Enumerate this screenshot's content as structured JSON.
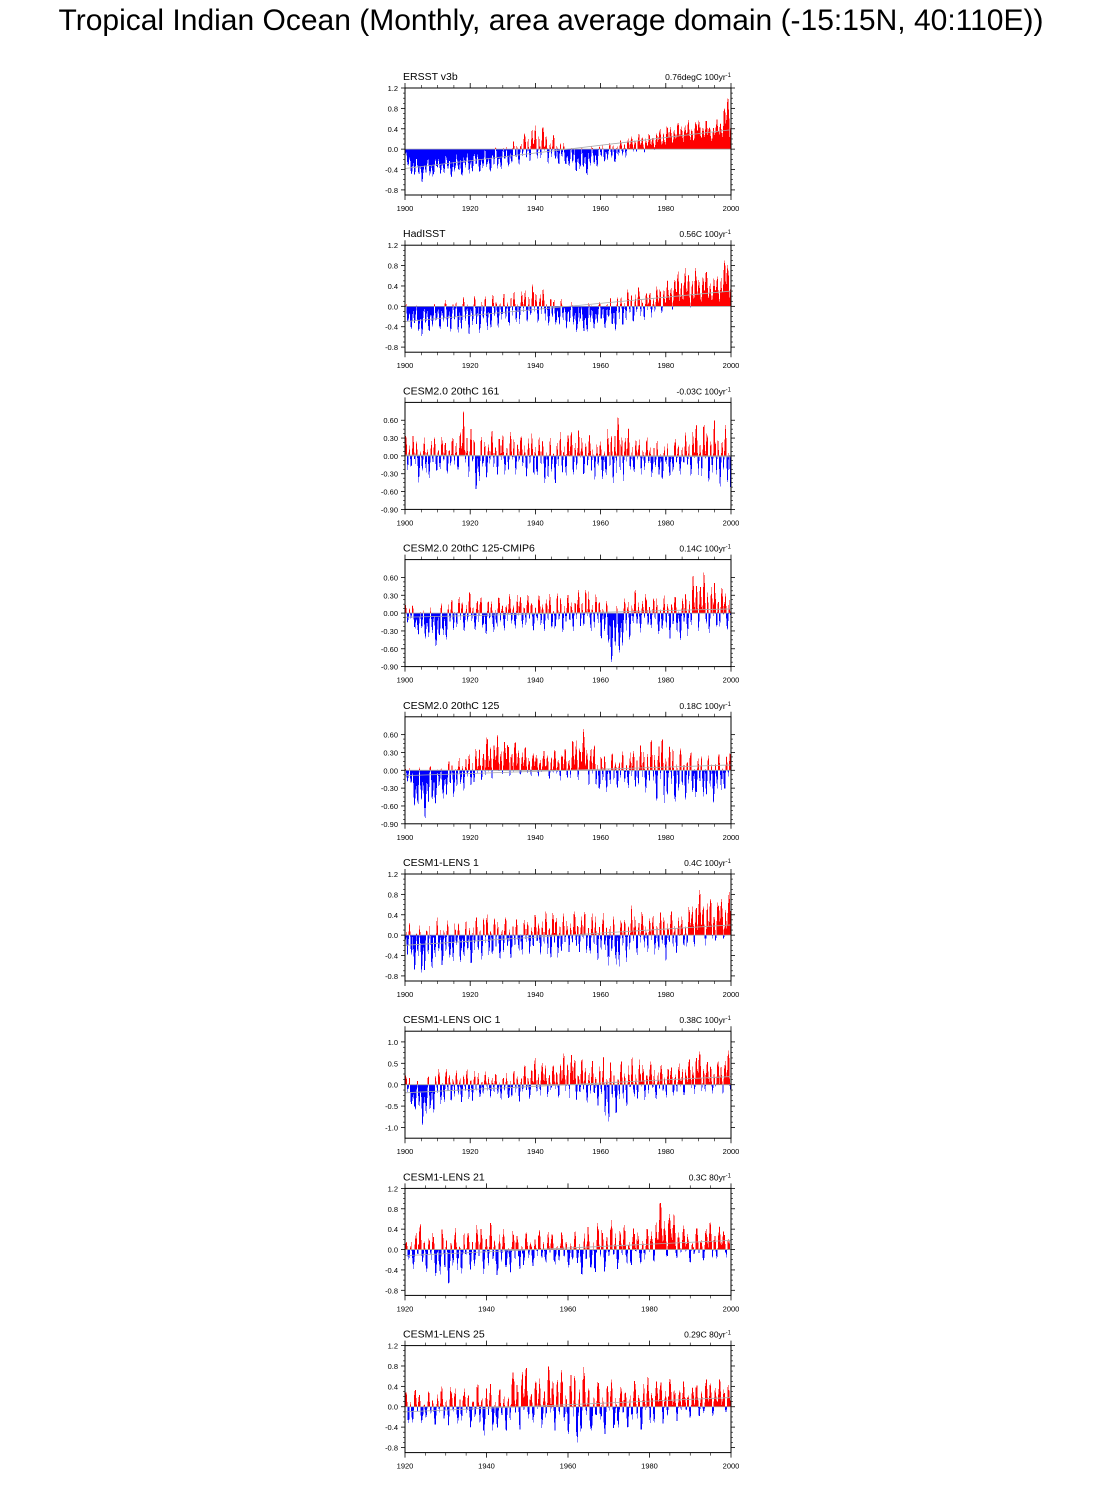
{
  "title": "Tropical Indian Ocean (Monthly, area average domain (-15:15N, 40:110E))",
  "colors": {
    "positive": "#ff0000",
    "negative": "#0000ff",
    "zero_line": "#a0a0a0",
    "trend_line": "#aaaaaa"
  },
  "chart_data": [
    {
      "type": "bar",
      "name": "ERSST v3b",
      "trend": "0.76degC 100yr",
      "xlim": [
        1900,
        2000
      ],
      "xticks": [
        "1900",
        "1920",
        "1940",
        "1960",
        "1980",
        "2000"
      ],
      "ylim": [
        -0.9,
        1.2
      ],
      "yticks": [
        "1.2",
        "0.8",
        "0.4",
        "0.0",
        "-0.4",
        "-0.8"
      ],
      "trend_line": [
        -0.38,
        0.38
      ],
      "anomaly_envelope": {
        "years": [
          1900,
          1905,
          1910,
          1915,
          1920,
          1925,
          1930,
          1935,
          1940,
          1945,
          1950,
          1955,
          1960,
          1965,
          1970,
          1975,
          1980,
          1985,
          1990,
          1995,
          1999
        ],
        "max": [
          0.0,
          -0.2,
          -0.15,
          -0.1,
          -0.05,
          0.0,
          0.05,
          0.2,
          0.55,
          0.3,
          0.05,
          0.05,
          0.1,
          0.15,
          0.3,
          0.3,
          0.45,
          0.55,
          0.6,
          0.5,
          1.05
        ],
        "min": [
          -0.45,
          -0.65,
          -0.5,
          -0.55,
          -0.5,
          -0.45,
          -0.4,
          -0.3,
          -0.2,
          -0.3,
          -0.35,
          -0.55,
          -0.3,
          -0.25,
          -0.1,
          -0.05,
          0.05,
          0.1,
          0.15,
          0.15,
          0.2
        ]
      }
    },
    {
      "type": "bar",
      "name": "HadISST",
      "trend": "0.56C 100yr",
      "xlim": [
        1900,
        2000
      ],
      "xticks": [
        "1900",
        "1920",
        "1940",
        "1960",
        "1980",
        "2000"
      ],
      "ylim": [
        -0.9,
        1.2
      ],
      "yticks": [
        "1.2",
        "0.8",
        "0.4",
        "0.0",
        "-0.4",
        "-0.8"
      ],
      "trend_line": [
        -0.3,
        0.3
      ],
      "anomaly_envelope": {
        "years": [
          1900,
          1905,
          1910,
          1915,
          1920,
          1925,
          1930,
          1935,
          1940,
          1945,
          1950,
          1955,
          1960,
          1965,
          1970,
          1975,
          1980,
          1985,
          1990,
          1995,
          1999
        ],
        "max": [
          0.05,
          0.0,
          0.1,
          0.15,
          0.2,
          0.2,
          0.25,
          0.3,
          0.45,
          0.2,
          0.1,
          0.05,
          0.1,
          0.2,
          0.4,
          0.3,
          0.5,
          0.75,
          0.75,
          0.6,
          1.05
        ],
        "min": [
          -0.35,
          -0.6,
          -0.45,
          -0.5,
          -0.55,
          -0.5,
          -0.4,
          -0.35,
          -0.3,
          -0.4,
          -0.45,
          -0.55,
          -0.4,
          -0.5,
          -0.3,
          -0.25,
          -0.1,
          -0.05,
          0.0,
          0.05,
          0.1
        ]
      }
    },
    {
      "type": "bar",
      "name": "CESM2.0 20thC 161",
      "trend": "-0.03C 100yr",
      "xlim": [
        1900,
        2000
      ],
      "xticks": [
        "1900",
        "1920",
        "1940",
        "1960",
        "1980",
        "2000"
      ],
      "ylim": [
        -0.9,
        0.9
      ],
      "yticks": [
        "0.60",
        "0.30",
        "0.00",
        "-0.30",
        "-0.60",
        "-0.90"
      ],
      "trend_line": [
        0.015,
        -0.015
      ],
      "anomaly_envelope": {
        "years": [
          1900,
          1905,
          1910,
          1915,
          1918,
          1922,
          1925,
          1930,
          1935,
          1940,
          1945,
          1950,
          1955,
          1960,
          1965,
          1970,
          1975,
          1980,
          1985,
          1990,
          1995,
          1999
        ],
        "max": [
          0.45,
          0.3,
          0.35,
          0.3,
          0.75,
          0.25,
          0.4,
          0.45,
          0.35,
          0.4,
          0.3,
          0.5,
          0.4,
          0.25,
          0.7,
          0.35,
          0.3,
          0.2,
          0.35,
          0.55,
          0.6,
          0.5
        ],
        "min": [
          -0.2,
          -0.5,
          -0.3,
          -0.3,
          -0.2,
          -0.6,
          -0.35,
          -0.35,
          -0.3,
          -0.4,
          -0.5,
          -0.35,
          -0.3,
          -0.45,
          -0.5,
          -0.3,
          -0.35,
          -0.4,
          -0.3,
          -0.35,
          -0.55,
          -0.6
        ]
      }
    },
    {
      "type": "bar",
      "name": "CESM2.0 20thC 125-CMIP6",
      "trend": "0.14C 100yr",
      "xlim": [
        1900,
        2000
      ],
      "xticks": [
        "1900",
        "1920",
        "1940",
        "1960",
        "1980",
        "2000"
      ],
      "ylim": [
        -0.9,
        0.9
      ],
      "yticks": [
        "0.60",
        "0.30",
        "0.00",
        "-0.30",
        "-0.60",
        "-0.90"
      ],
      "trend_line": [
        -0.07,
        0.07
      ],
      "anomaly_envelope": {
        "years": [
          1900,
          1905,
          1910,
          1915,
          1920,
          1925,
          1930,
          1935,
          1940,
          1945,
          1950,
          1955,
          1960,
          1964,
          1970,
          1975,
          1980,
          1985,
          1990,
          1995,
          1999
        ],
        "max": [
          0.2,
          0.05,
          0.15,
          0.25,
          0.35,
          0.25,
          0.3,
          0.35,
          0.3,
          0.35,
          0.3,
          0.45,
          0.3,
          0.1,
          0.4,
          0.3,
          0.3,
          0.35,
          0.75,
          0.55,
          0.4
        ],
        "min": [
          -0.1,
          -0.45,
          -0.6,
          -0.3,
          -0.3,
          -0.35,
          -0.3,
          -0.25,
          -0.3,
          -0.35,
          -0.3,
          -0.3,
          -0.4,
          -0.9,
          -0.35,
          -0.3,
          -0.4,
          -0.5,
          -0.3,
          -0.35,
          -0.3
        ]
      }
    },
    {
      "type": "bar",
      "name": "CESM2.0 20thC 125",
      "trend": "0.18C 100yr",
      "xlim": [
        1900,
        2000
      ],
      "xticks": [
        "1900",
        "1920",
        "1940",
        "1960",
        "1980",
        "2000"
      ],
      "ylim": [
        -0.9,
        0.9
      ],
      "yticks": [
        "0.60",
        "0.30",
        "0.00",
        "-0.30",
        "-0.60",
        "-0.90"
      ],
      "trend_line": [
        -0.09,
        0.09
      ],
      "anomaly_envelope": {
        "years": [
          1900,
          1903,
          1906,
          1910,
          1915,
          1920,
          1925,
          1928,
          1935,
          1940,
          1945,
          1950,
          1954,
          1960,
          1965,
          1970,
          1975,
          1979,
          1985,
          1990,
          1995,
          1999
        ],
        "max": [
          0.1,
          0.05,
          0.05,
          0.1,
          0.2,
          0.3,
          0.55,
          0.6,
          0.45,
          0.3,
          0.35,
          0.4,
          0.75,
          0.3,
          0.3,
          0.35,
          0.5,
          0.6,
          0.35,
          0.3,
          0.25,
          0.3
        ],
        "min": [
          -0.1,
          -0.6,
          -0.85,
          -0.5,
          -0.45,
          -0.3,
          -0.2,
          -0.1,
          -0.1,
          -0.1,
          -0.15,
          -0.2,
          -0.15,
          -0.4,
          -0.3,
          -0.3,
          -0.4,
          -0.6,
          -0.5,
          -0.45,
          -0.55,
          -0.3
        ]
      }
    },
    {
      "type": "bar",
      "name": "CESM1-LENS 1",
      "trend": "0.4C 100yr",
      "xlim": [
        1900,
        2000
      ],
      "xticks": [
        "1900",
        "1920",
        "1940",
        "1960",
        "1980",
        "2000"
      ],
      "ylim": [
        -0.9,
        1.2
      ],
      "yticks": [
        "1.2",
        "0.8",
        "0.4",
        "0.0",
        "-0.4",
        "-0.8"
      ],
      "trend_line": [
        -0.2,
        0.2
      ],
      "anomaly_envelope": {
        "years": [
          1900,
          1905,
          1910,
          1915,
          1920,
          1925,
          1930,
          1935,
          1940,
          1945,
          1950,
          1955,
          1960,
          1965,
          1970,
          1975,
          1980,
          1985,
          1990,
          1995,
          1999
        ],
        "max": [
          0.25,
          0.2,
          0.35,
          0.25,
          0.3,
          0.45,
          0.35,
          0.3,
          0.4,
          0.5,
          0.45,
          0.5,
          0.45,
          0.35,
          0.6,
          0.4,
          0.5,
          0.4,
          0.9,
          0.7,
          0.85
        ],
        "min": [
          -0.5,
          -0.8,
          -0.6,
          -0.55,
          -0.55,
          -0.45,
          -0.5,
          -0.4,
          -0.35,
          -0.5,
          -0.35,
          -0.45,
          -0.5,
          -0.7,
          -0.4,
          -0.35,
          -0.5,
          -0.3,
          -0.2,
          -0.2,
          -0.1
        ]
      }
    },
    {
      "type": "bar",
      "name": "CESM1-LENS OIC 1",
      "trend": "0.38C 100yr",
      "xlim": [
        1900,
        2000
      ],
      "xticks": [
        "1900",
        "1920",
        "1940",
        "1960",
        "1980",
        "2000"
      ],
      "ylim": [
        -1.25,
        1.25
      ],
      "yticks": [
        "1.0",
        "0.5",
        "0.0",
        "-0.5",
        "-1.0"
      ],
      "trend_line": [
        -0.19,
        0.19
      ],
      "anomaly_envelope": {
        "years": [
          1900,
          1903,
          1906,
          1910,
          1915,
          1920,
          1925,
          1930,
          1935,
          1940,
          1945,
          1950,
          1955,
          1960,
          1962,
          1964,
          1970,
          1975,
          1980,
          1985,
          1990,
          1995,
          1999
        ],
        "max": [
          0.3,
          0.1,
          0.1,
          0.4,
          0.35,
          0.35,
          0.3,
          0.25,
          0.35,
          0.65,
          0.45,
          0.85,
          0.6,
          0.5,
          1.0,
          0.5,
          0.65,
          0.55,
          0.45,
          0.5,
          0.8,
          0.45,
          0.8
        ],
        "min": [
          -0.3,
          -0.7,
          -1.0,
          -0.5,
          -0.4,
          -0.4,
          -0.3,
          -0.35,
          -0.4,
          -0.3,
          -0.3,
          -0.3,
          -0.4,
          -0.5,
          -1.05,
          -0.7,
          -0.4,
          -0.35,
          -0.3,
          -0.25,
          -0.2,
          -0.2,
          -0.2
        ]
      }
    },
    {
      "type": "bar",
      "name": "CESM1-LENS 21",
      "trend": "0.3C 80yr",
      "xlim": [
        1920,
        2000
      ],
      "xticks": [
        "1920",
        "1940",
        "1960",
        "1980",
        "2000"
      ],
      "ylim": [
        -0.9,
        1.2
      ],
      "yticks": [
        "1.2",
        "0.8",
        "0.4",
        "0.0",
        "-0.4",
        "-0.8"
      ],
      "trend_line": [
        -0.12,
        0.18
      ],
      "anomaly_envelope": {
        "years": [
          1920,
          1923,
          1926,
          1930,
          1935,
          1940,
          1945,
          1950,
          1955,
          1960,
          1965,
          1970,
          1975,
          1980,
          1983,
          1986,
          1990,
          1995,
          1999
        ],
        "max": [
          0.1,
          0.55,
          0.35,
          0.45,
          0.4,
          0.55,
          0.4,
          0.35,
          0.4,
          0.3,
          0.45,
          0.6,
          0.45,
          0.4,
          1.0,
          0.7,
          0.35,
          0.55,
          0.4
        ],
        "min": [
          -0.35,
          -0.4,
          -0.5,
          -0.7,
          -0.45,
          -0.5,
          -0.5,
          -0.4,
          -0.3,
          -0.35,
          -0.55,
          -0.4,
          -0.35,
          -0.25,
          -0.2,
          -0.2,
          -0.25,
          -0.2,
          -0.15
        ]
      }
    },
    {
      "type": "bar",
      "name": "CESM1-LENS 25",
      "trend": "0.29C 80yr",
      "xlim": [
        1920,
        2000
      ],
      "xticks": [
        "1920",
        "1940",
        "1960",
        "1980",
        "2000"
      ],
      "ylim": [
        -0.9,
        1.2
      ],
      "yticks": [
        "1.2",
        "0.8",
        "0.4",
        "0.0",
        "-0.4",
        "-0.8"
      ],
      "trend_line": [
        -0.1,
        0.18
      ],
      "anomaly_envelope": {
        "years": [
          1920,
          1923,
          1926,
          1930,
          1935,
          1940,
          1944,
          1948,
          1952,
          1956,
          1960,
          1963,
          1966,
          1970,
          1975,
          1980,
          1984,
          1990,
          1995,
          1999
        ],
        "max": [
          0.3,
          0.35,
          0.3,
          0.45,
          0.35,
          0.5,
          0.3,
          0.9,
          0.6,
          0.85,
          0.65,
          0.9,
          0.45,
          0.55,
          0.45,
          0.65,
          0.6,
          0.45,
          0.6,
          0.5
        ],
        "min": [
          -0.45,
          -0.3,
          -0.35,
          -0.4,
          -0.35,
          -0.6,
          -0.5,
          -0.45,
          -0.4,
          -0.45,
          -0.55,
          -0.75,
          -0.5,
          -0.55,
          -0.45,
          -0.45,
          -0.3,
          -0.25,
          -0.2,
          -0.1
        ]
      }
    }
  ]
}
